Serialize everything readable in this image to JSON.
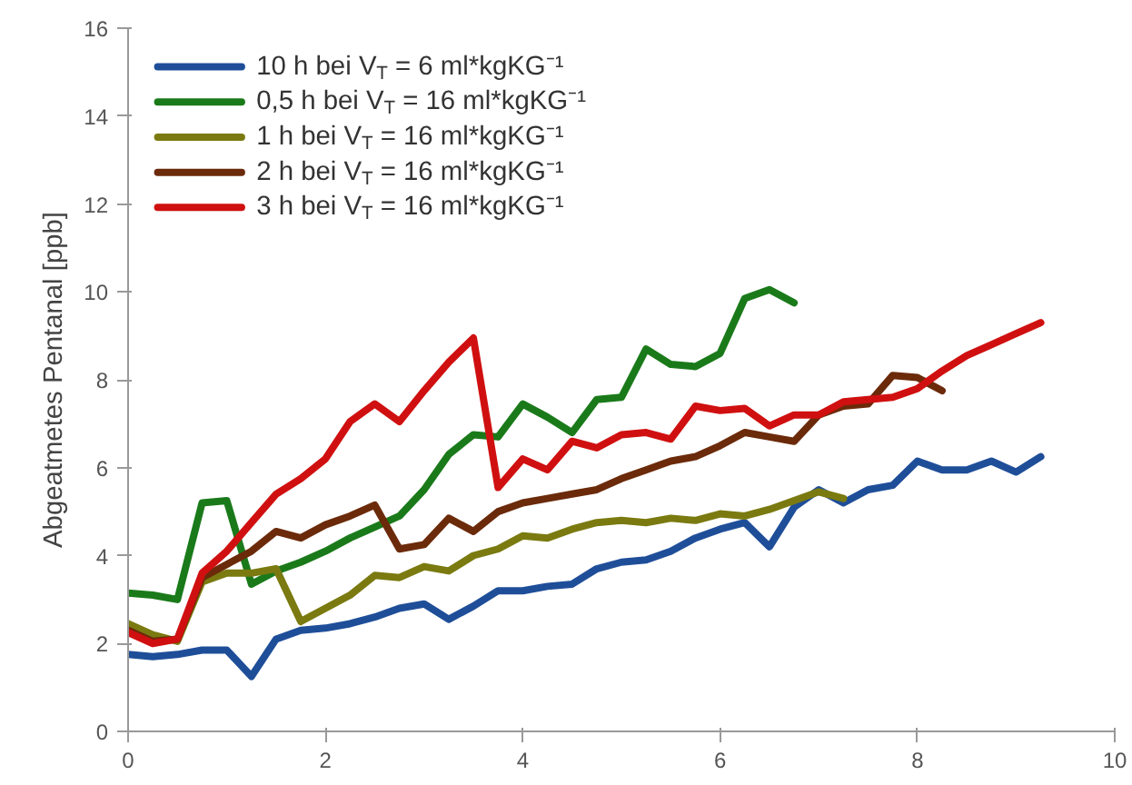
{
  "chart_data": {
    "type": "line",
    "ylabel": "Abgeatmetes Pentanal [ppb]",
    "x": [
      0,
      0.25,
      0.5,
      0.75,
      1,
      1.25,
      1.5,
      1.75,
      2,
      2.25,
      2.5,
      2.75,
      3,
      3.25,
      3.5,
      3.75,
      4,
      4.25,
      4.5,
      4.75,
      5,
      5.25,
      5.5,
      5.75,
      6,
      6.25,
      6.5,
      6.75,
      7,
      7.25,
      7.5,
      7.75,
      8,
      8.25,
      8.5,
      8.75,
      9,
      9.25
    ],
    "series": [
      {
        "name": "10 h bei V$_{T}$ = 6 ml*kgKG⁻¹",
        "color": "#1f4e99",
        "values": [
          1.75,
          1.7,
          1.75,
          1.85,
          1.85,
          1.25,
          2.1,
          2.3,
          2.35,
          2.45,
          2.6,
          2.8,
          2.9,
          2.55,
          2.85,
          3.2,
          3.2,
          3.3,
          3.35,
          3.7,
          3.85,
          3.9,
          4.1,
          4.4,
          4.6,
          4.75,
          4.2,
          5.1,
          5.5,
          5.2,
          5.5,
          5.6,
          6.15,
          5.95,
          5.95,
          6.15,
          5.9,
          6.25
        ]
      },
      {
        "name": "0,5 h bei V$_{T}$ = 16 ml*kgKG⁻¹",
        "color": "#1a7a1a",
        "values": [
          3.15,
          3.1,
          3.0,
          5.2,
          5.25,
          3.35,
          3.65,
          3.85,
          4.1,
          4.4,
          4.65,
          4.9,
          5.5,
          6.3,
          6.75,
          6.7,
          7.45,
          7.15,
          6.8,
          7.55,
          7.6,
          8.7,
          8.35,
          8.3,
          8.6,
          9.85,
          10.05,
          9.75,
          null,
          null,
          null,
          null,
          null,
          null,
          null,
          null,
          null,
          null
        ]
      },
      {
        "name": "1 h bei V$_{T}$ = 16 ml*kgKG⁻¹",
        "color": "#7a7a10",
        "values": [
          2.45,
          2.2,
          2.05,
          3.4,
          3.6,
          3.6,
          3.7,
          2.5,
          2.8,
          3.1,
          3.55,
          3.5,
          3.75,
          3.65,
          4.0,
          4.15,
          4.45,
          4.4,
          4.6,
          4.75,
          4.8,
          4.75,
          4.85,
          4.8,
          4.95,
          4.9,
          5.05,
          5.25,
          5.45,
          5.3,
          null,
          null,
          null,
          null,
          null,
          null,
          null,
          null
        ]
      },
      {
        "name": "2 h bei V$_{T}$ = 16 ml*kgKG⁻¹",
        "color": "#6b2a0a",
        "values": [
          2.3,
          2.05,
          2.1,
          3.5,
          3.8,
          4.1,
          4.55,
          4.4,
          4.7,
          4.9,
          5.15,
          4.15,
          4.25,
          4.85,
          4.55,
          5.0,
          5.2,
          5.3,
          5.4,
          5.5,
          5.75,
          5.95,
          6.15,
          6.25,
          6.5,
          6.8,
          6.7,
          6.6,
          7.2,
          7.4,
          7.45,
          8.1,
          8.05,
          7.75,
          null,
          null,
          null,
          null
        ]
      },
      {
        "name": "3 h bei V$_{T}$ = 16 ml*kgKG⁻¹",
        "color": "#d01010",
        "values": [
          2.25,
          2.0,
          2.1,
          3.6,
          4.1,
          4.75,
          5.4,
          5.75,
          6.2,
          7.05,
          7.45,
          7.05,
          7.75,
          8.4,
          8.95,
          5.55,
          6.2,
          5.95,
          6.6,
          6.45,
          6.75,
          6.8,
          6.65,
          7.4,
          7.3,
          7.35,
          6.95,
          7.2,
          7.2,
          7.5,
          7.55,
          7.6,
          7.8,
          8.2,
          8.55,
          8.8,
          9.05,
          9.3
        ]
      }
    ],
    "xlim": [
      0,
      10
    ],
    "ylim": [
      0,
      16
    ],
    "xticks": [
      0,
      2,
      4,
      6,
      8,
      10
    ],
    "yticks": [
      0,
      2,
      4,
      6,
      8,
      10,
      12,
      14,
      16
    ],
    "grid": false,
    "legend": "top left",
    "marker": "none",
    "line_style": "solid"
  }
}
